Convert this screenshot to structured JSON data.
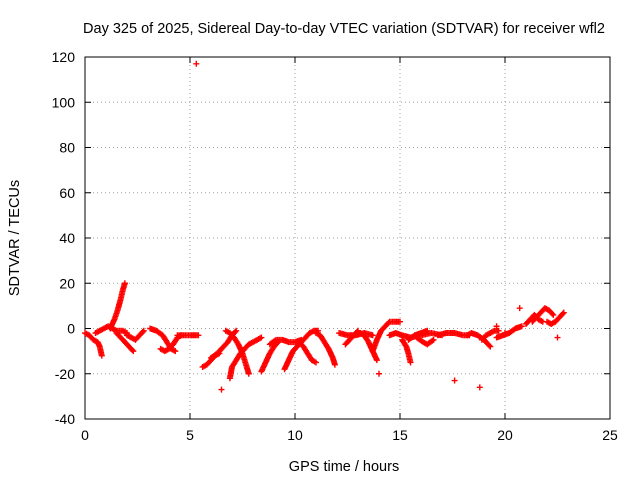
{
  "chart_data": {
    "type": "scatter",
    "title": "Day 325 of 2025, Sidereal Day-to-day VTEC variation (SDTVAR) for receiver wfl2",
    "xlabel": "GPS time / hours",
    "ylabel": "SDTVAR / TECUs",
    "xlim": [
      0,
      25
    ],
    "ylim": [
      -40,
      120
    ],
    "xticks": [
      0,
      5,
      10,
      15,
      20,
      25
    ],
    "yticks": [
      -40,
      -20,
      0,
      20,
      40,
      60,
      80,
      100,
      120
    ],
    "grid": true,
    "marker": "+",
    "color": "#ff0000",
    "segments": [
      [
        [
          0.0,
          -2
        ],
        [
          0.2,
          -3
        ],
        [
          0.4,
          -5
        ],
        [
          0.6,
          -6
        ],
        [
          0.7,
          -8
        ],
        [
          0.8,
          -12
        ]
      ],
      [
        [
          0.5,
          -2
        ],
        [
          0.7,
          -1
        ],
        [
          0.9,
          0
        ],
        [
          1.1,
          1
        ],
        [
          1.3,
          0
        ],
        [
          1.5,
          -1
        ],
        [
          1.8,
          -1
        ],
        [
          2.0,
          -2
        ]
      ],
      [
        [
          1.2,
          0
        ],
        [
          1.4,
          4
        ],
        [
          1.55,
          8
        ],
        [
          1.7,
          13
        ],
        [
          1.8,
          17
        ],
        [
          1.9,
          20
        ]
      ],
      [
        [
          1.5,
          -2
        ],
        [
          1.7,
          -4
        ],
        [
          1.9,
          -6
        ],
        [
          2.1,
          -8
        ],
        [
          2.3,
          -10
        ]
      ],
      [
        [
          2.0,
          -3
        ],
        [
          2.2,
          -4
        ],
        [
          2.4,
          -5
        ],
        [
          2.6,
          -3
        ],
        [
          2.8,
          -1
        ]
      ],
      [
        [
          3.1,
          0
        ],
        [
          3.4,
          -1
        ],
        [
          3.7,
          -3
        ],
        [
          3.9,
          -6
        ],
        [
          4.1,
          -9
        ],
        [
          4.3,
          -10
        ]
      ],
      [
        [
          3.6,
          -9
        ],
        [
          3.8,
          -10
        ],
        [
          4.0,
          -9
        ],
        [
          4.2,
          -7
        ],
        [
          4.4,
          -4
        ],
        [
          4.6,
          -3
        ]
      ],
      [
        [
          4.4,
          -3
        ],
        [
          4.7,
          -3
        ],
        [
          5.0,
          -3
        ],
        [
          5.2,
          -3
        ],
        [
          5.4,
          -3
        ]
      ],
      [
        [
          5.6,
          -17
        ],
        [
          5.8,
          -16
        ],
        [
          6.0,
          -14
        ],
        [
          6.2,
          -12
        ],
        [
          6.4,
          -11
        ]
      ],
      [
        [
          6.0,
          -13
        ],
        [
          6.3,
          -11
        ],
        [
          6.6,
          -8
        ],
        [
          6.8,
          -6
        ],
        [
          7.0,
          -3
        ],
        [
          7.2,
          -1
        ]
      ],
      [
        [
          6.7,
          -1
        ],
        [
          6.9,
          -2
        ],
        [
          7.1,
          -4
        ],
        [
          7.3,
          -7
        ],
        [
          7.5,
          -11
        ],
        [
          7.7,
          -17
        ],
        [
          7.8,
          -20
        ]
      ],
      [
        [
          6.9,
          -22
        ],
        [
          7.0,
          -17
        ],
        [
          7.2,
          -14
        ],
        [
          7.4,
          -11
        ],
        [
          7.6,
          -9
        ],
        [
          7.8,
          -7
        ],
        [
          8.0,
          -6
        ],
        [
          8.2,
          -5
        ],
        [
          8.4,
          -4
        ]
      ],
      [
        [
          8.4,
          -19
        ],
        [
          8.6,
          -15
        ],
        [
          8.8,
          -11
        ],
        [
          9.0,
          -8
        ],
        [
          9.2,
          -6
        ]
      ],
      [
        [
          8.8,
          -7
        ],
        [
          9.1,
          -5
        ],
        [
          9.4,
          -5
        ],
        [
          9.7,
          -6
        ],
        [
          10.0,
          -6
        ],
        [
          10.3,
          -5
        ]
      ],
      [
        [
          9.5,
          -18
        ],
        [
          9.7,
          -14
        ],
        [
          9.9,
          -10
        ],
        [
          10.1,
          -8
        ],
        [
          10.3,
          -6
        ],
        [
          10.5,
          -4
        ],
        [
          10.7,
          -2
        ],
        [
          10.9,
          -1
        ],
        [
          11.1,
          -1
        ]
      ],
      [
        [
          10.2,
          -6
        ],
        [
          10.4,
          -8
        ],
        [
          10.6,
          -11
        ],
        [
          10.8,
          -14
        ],
        [
          11.0,
          -15
        ]
      ],
      [
        [
          11.0,
          -2
        ],
        [
          11.2,
          -3
        ],
        [
          11.4,
          -6
        ],
        [
          11.6,
          -9
        ],
        [
          11.8,
          -13
        ],
        [
          11.9,
          -16
        ]
      ],
      [
        [
          12.1,
          -2
        ],
        [
          12.5,
          -3
        ],
        [
          12.9,
          -3
        ],
        [
          13.3,
          -2
        ],
        [
          13.7,
          -3
        ]
      ],
      [
        [
          12.4,
          -7
        ],
        [
          12.6,
          -5
        ],
        [
          12.8,
          -3
        ],
        [
          13.0,
          -1
        ]
      ],
      [
        [
          13.1,
          -2
        ],
        [
          13.3,
          -3
        ],
        [
          13.5,
          -6
        ],
        [
          13.7,
          -10
        ],
        [
          13.9,
          -14
        ]
      ],
      [
        [
          13.7,
          -10
        ],
        [
          13.9,
          -5
        ],
        [
          14.1,
          -1
        ],
        [
          14.3,
          1
        ],
        [
          14.5,
          3
        ],
        [
          14.8,
          3
        ],
        [
          15.0,
          3
        ]
      ],
      [
        [
          14.5,
          -3
        ],
        [
          14.8,
          -2
        ],
        [
          15.1,
          -3
        ],
        [
          15.5,
          -4
        ],
        [
          16.0,
          -3
        ],
        [
          16.5,
          -2
        ],
        [
          17.0,
          -3
        ]
      ],
      [
        [
          15.1,
          -5
        ],
        [
          15.3,
          -8
        ],
        [
          15.4,
          -11
        ],
        [
          15.5,
          -15
        ]
      ],
      [
        [
          15.4,
          -5
        ],
        [
          15.7,
          -3
        ],
        [
          16.0,
          -2
        ],
        [
          16.3,
          -1
        ]
      ],
      [
        [
          15.8,
          -4
        ],
        [
          16.1,
          -6
        ],
        [
          16.3,
          -7
        ],
        [
          16.6,
          -5
        ]
      ],
      [
        [
          16.8,
          -3
        ],
        [
          17.2,
          -2
        ],
        [
          17.6,
          -2
        ],
        [
          18.0,
          -3
        ],
        [
          18.3,
          -3
        ]
      ],
      [
        [
          18.2,
          -3
        ],
        [
          18.4,
          -2
        ],
        [
          18.7,
          -3
        ],
        [
          19.0,
          -5
        ],
        [
          19.3,
          -8
        ]
      ],
      [
        [
          18.9,
          -5
        ],
        [
          19.1,
          -3
        ],
        [
          19.3,
          -2
        ],
        [
          19.5,
          -1
        ],
        [
          19.7,
          -1
        ]
      ],
      [
        [
          19.6,
          -4
        ],
        [
          19.9,
          -3
        ],
        [
          20.2,
          -2
        ],
        [
          20.5,
          0
        ],
        [
          20.8,
          1
        ]
      ],
      [
        [
          21.0,
          2
        ],
        [
          21.2,
          4
        ],
        [
          21.4,
          6
        ],
        [
          21.6,
          4
        ],
        [
          21.8,
          3
        ]
      ],
      [
        [
          21.3,
          3
        ],
        [
          21.5,
          5
        ],
        [
          21.7,
          7
        ],
        [
          21.9,
          9
        ],
        [
          22.1,
          8
        ],
        [
          22.3,
          6
        ]
      ],
      [
        [
          22.0,
          3
        ],
        [
          22.2,
          2
        ],
        [
          22.4,
          3
        ],
        [
          22.6,
          5
        ],
        [
          22.8,
          7
        ]
      ]
    ],
    "isolated_points": [
      [
        5.3,
        117
      ],
      [
        6.5,
        -27
      ],
      [
        14.0,
        -20
      ],
      [
        17.6,
        -23
      ],
      [
        18.8,
        -26
      ],
      [
        19.6,
        1
      ],
      [
        20.0,
        -2
      ],
      [
        20.7,
        9
      ],
      [
        22.5,
        -4
      ]
    ]
  }
}
